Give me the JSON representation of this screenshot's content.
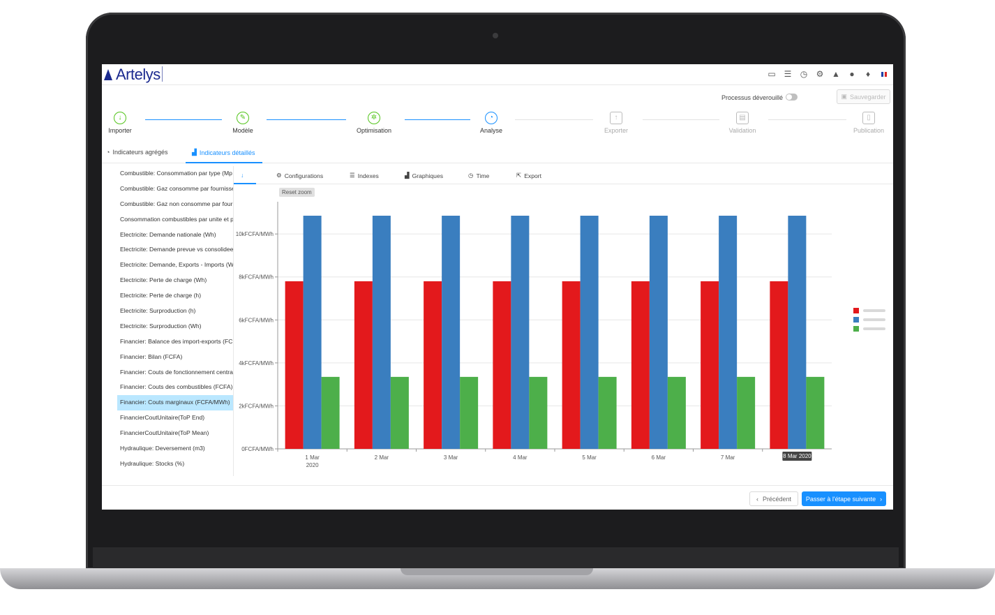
{
  "app": {
    "logo_text": "Artelys"
  },
  "top_icons": [
    "folder-icon",
    "database-icon",
    "clock-icon",
    "gear-icon",
    "bell-icon",
    "user-icon",
    "bulb-icon",
    "flag-icon"
  ],
  "header": {
    "lock_label": "Processus déverouillé",
    "save_label": "Sauvegarder"
  },
  "steps": [
    {
      "label": "Importer",
      "icon": "cloud-download-icon",
      "state": "done"
    },
    {
      "label": "Modèle",
      "icon": "edit-icon",
      "state": "done"
    },
    {
      "label": "Optimisation",
      "icon": "cog-icon",
      "state": "done"
    },
    {
      "label": "Analyse",
      "icon": "dashboard-icon",
      "state": "current"
    },
    {
      "label": "Exporter",
      "icon": "cloud-upload-icon",
      "state": "todo"
    },
    {
      "label": "Validation",
      "icon": "file-icon",
      "state": "todo"
    },
    {
      "label": "Publication",
      "icon": "mobile-icon",
      "state": "todo"
    }
  ],
  "tabs": [
    {
      "label": "Indicateurs agrégés",
      "active": false
    },
    {
      "label": "Indicateurs détaillés",
      "active": true
    }
  ],
  "side_items": [
    "Combustible: Consommation par type (Mp",
    "Combustible: Gaz consomme par fournisse",
    "Combustible: Gaz non consomme par fourr",
    "Consommation combustibles par unite et p",
    "Electricite: Demande nationale (Wh)",
    "Electricite: Demande prevue vs consolidee",
    "Electricite: Demande, Exports - Imports (WI",
    "Electricite: Perte de charge (Wh)",
    "Electricite: Perte de charge (h)",
    "Electricite: Surproduction (h)",
    "Electricite: Surproduction (Wh)",
    "Financier: Balance des import-exports (FCF",
    "Financier: Bilan (FCFA)",
    "Financier: Couts de fonctionnement central",
    "Financier: Couts des combustibles (FCFA)",
    "Financier: Couts marginaux (FCFA/MWh)",
    "FinancierCoutUnitaire(ToP End)",
    "FinancierCoutUnitaire(ToP Mean)",
    "Hydraulique: Deversement (m3)",
    "Hydraulique: Stocks (%)"
  ],
  "selected_side_index": 15,
  "chart_tabs": [
    {
      "label": "↓",
      "active": true
    },
    {
      "label": "Configurations",
      "icon": "gear-icon"
    },
    {
      "label": "Indexes",
      "icon": "list-icon"
    },
    {
      "label": "Graphiques",
      "icon": "chart-icon"
    },
    {
      "label": "Time",
      "icon": "clock-icon"
    },
    {
      "label": "Export",
      "icon": "export-icon"
    }
  ],
  "reset_zoom_label": "Reset zoom",
  "chart_data": {
    "type": "bar",
    "categories": [
      "1 Mar",
      "2 Mar",
      "3 Mar",
      "4 Mar",
      "5 Mar",
      "6 Mar",
      "7 Mar",
      "8 Mar"
    ],
    "first_category_year": "2020",
    "tooltip_label": "8 Mar 2020",
    "y_ticks": [
      "0FCFA/MWh",
      "2kFCFA/MWh",
      "4kFCFA/MWh",
      "6kFCFA/MWh",
      "8kFCFA/MWh",
      "10kFCFA/MWh"
    ],
    "ylim": [
      0,
      11500
    ],
    "series": [
      {
        "color": "#e3191c",
        "values": [
          7800,
          7800,
          7800,
          7800,
          7800,
          7800,
          7800,
          7800
        ]
      },
      {
        "color": "#3a7ebf",
        "values": [
          10850,
          10850,
          10850,
          10850,
          10850,
          10850,
          10850,
          10850
        ]
      },
      {
        "color": "#4daf4a",
        "values": [
          3350,
          3350,
          3350,
          3350,
          3350,
          3350,
          3350,
          3350
        ]
      }
    ],
    "grid": true,
    "legend_placement": "right"
  },
  "footer": {
    "prev_label": "Précédent",
    "next_label": "Passer à l'étape suivante"
  }
}
